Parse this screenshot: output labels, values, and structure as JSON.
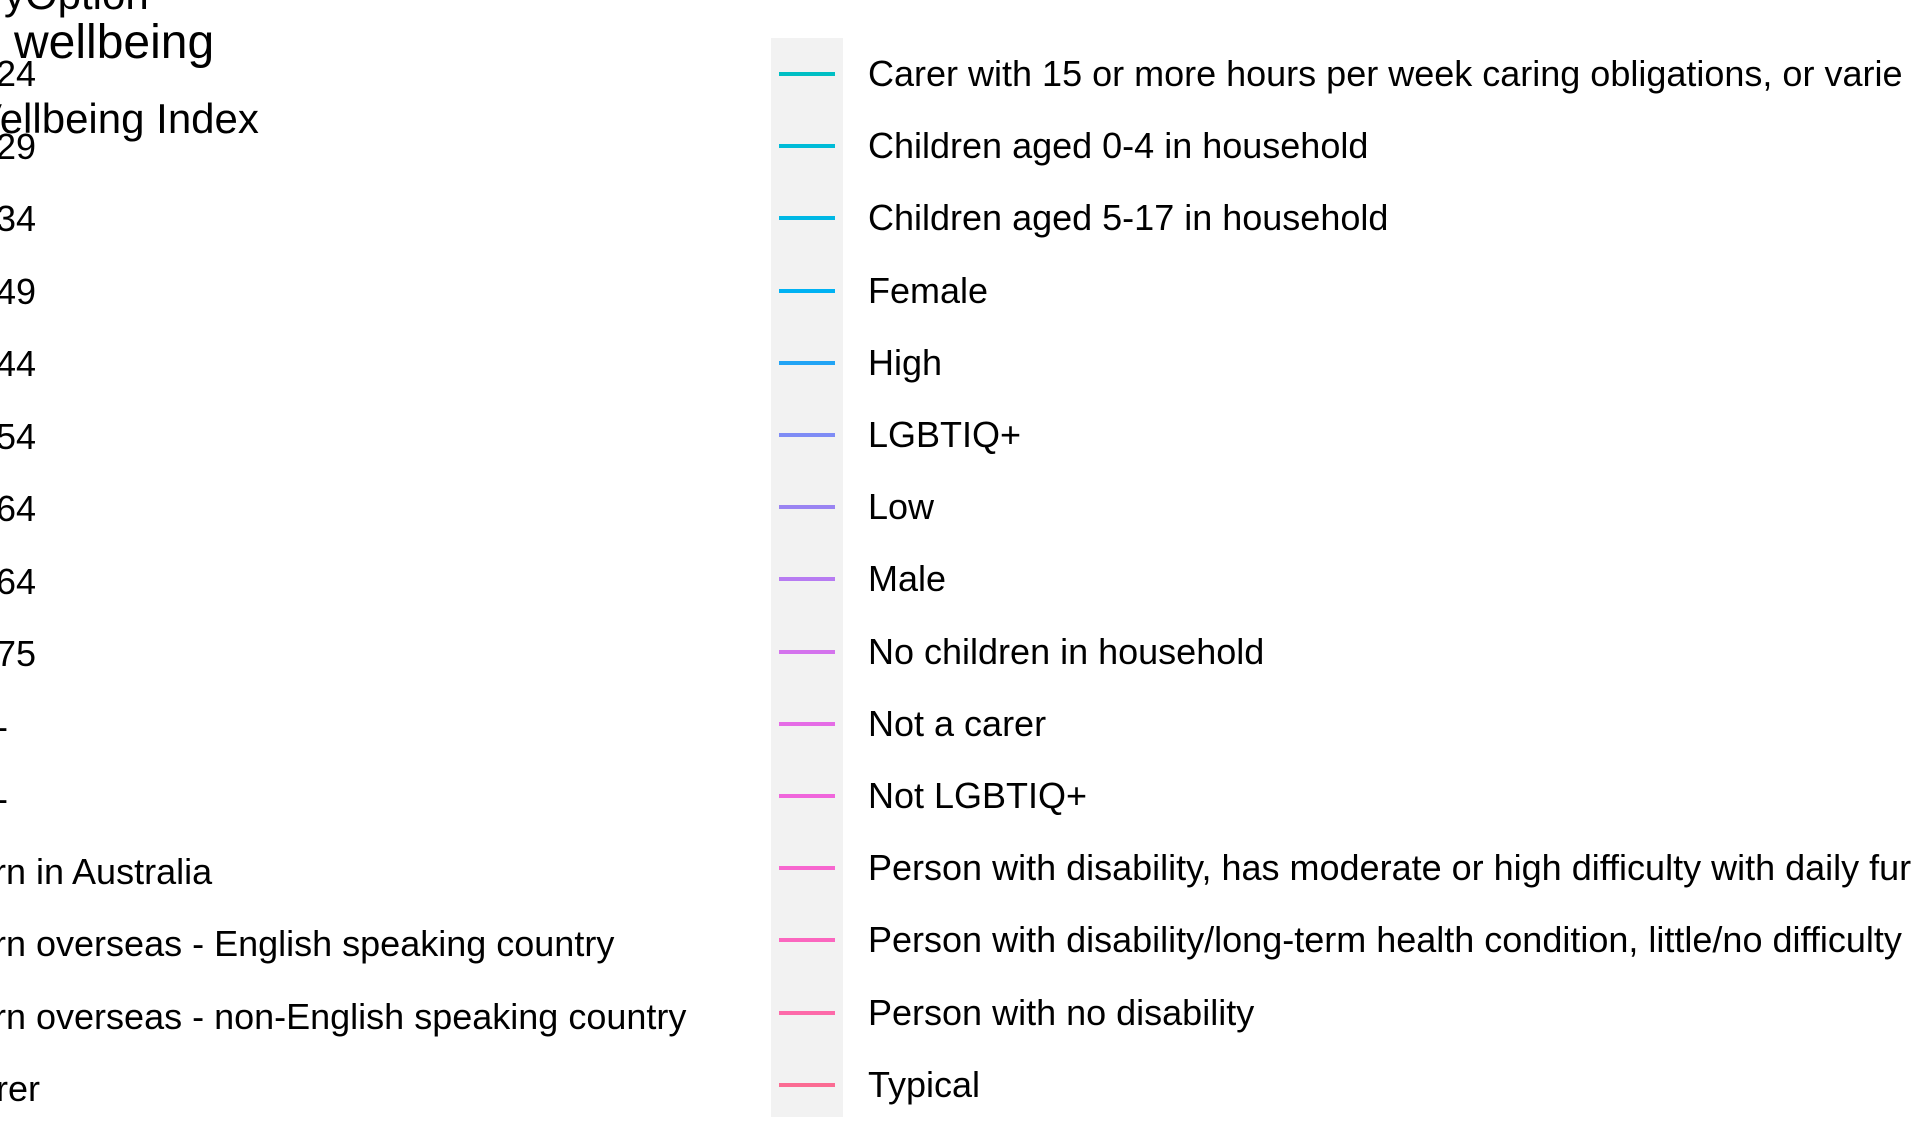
{
  "title": {
    "clipped_line": "ryOption",
    "main": "wellbeing",
    "subtitle": "Vellbeing Index"
  },
  "left_labels": [
    "24",
    "29",
    "34",
    "49",
    "44",
    "54",
    "64",
    "64",
    "75",
    "-",
    "-",
    "rn in Australia",
    "rn overseas - English speaking country",
    "rn overseas - non-English speaking country",
    "rer"
  ],
  "chart_data": {
    "type": "line",
    "legend_placement": "right",
    "legend_entries": [
      {
        "label": "Carer with 15 or more hours per week caring obligations, or varie",
        "color": "#00bfc4"
      },
      {
        "label": "Children aged 0-4 in household",
        "color": "#00bcd8"
      },
      {
        "label": "Children aged 5-17 in household",
        "color": "#00b8e5"
      },
      {
        "label": "Female",
        "color": "#00b2f3"
      },
      {
        "label": "High",
        "color": "#22a4f5"
      },
      {
        "label": "LGBTIQ+",
        "color": "#7f8cf5"
      },
      {
        "label": "Low",
        "color": "#9a84f2"
      },
      {
        "label": "Male",
        "color": "#b77cf2"
      },
      {
        "label": "No children in household",
        "color": "#d473ed"
      },
      {
        "label": "Not a carer",
        "color": "#e56ce6"
      },
      {
        "label": "Not LGBTIQ+",
        "color": "#f066dc"
      },
      {
        "label": "Person with disability, has moderate or high difficulty with daily fur",
        "color": "#f766cf"
      },
      {
        "label": "Person with disability/long-term health condition, little/no difficulty",
        "color": "#fb67bf"
      },
      {
        "label": "Person with no disability",
        "color": "#fd6aa9"
      },
      {
        "label": "Typical",
        "color": "#fb6c93"
      }
    ]
  }
}
